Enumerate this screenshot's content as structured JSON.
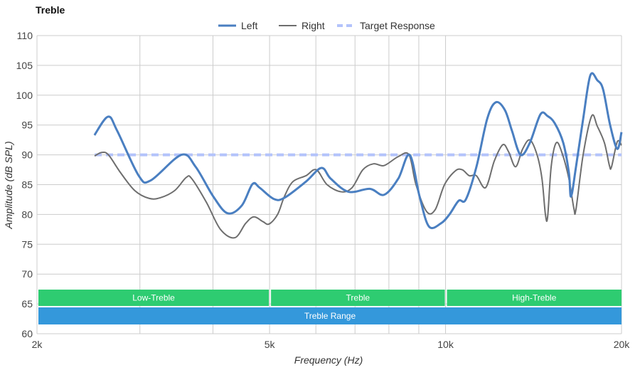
{
  "chart_data": {
    "type": "line",
    "title": "Treble",
    "xlabel": "Frequency (Hz)",
    "ylabel": "Amplitude (dB SPL)",
    "xscale": "log",
    "xlim": [
      2000,
      20000
    ],
    "ylim": [
      60,
      110
    ],
    "grid": true,
    "legend_position": "top",
    "x_ticks": [
      {
        "v": 2000,
        "label": "2k"
      },
      {
        "v": 5000,
        "label": "5k"
      },
      {
        "v": 10000,
        "label": "10k"
      },
      {
        "v": 20000,
        "label": "20k"
      }
    ],
    "x_gridlines": [
      2000,
      3000,
      4000,
      5000,
      6000,
      7000,
      8000,
      9000,
      10000,
      20000
    ],
    "y_ticks": [
      60,
      65,
      70,
      75,
      80,
      85,
      90,
      95,
      100,
      105,
      110
    ],
    "series": [
      {
        "name": "Left",
        "color": "#4a7fc1",
        "style": "solid",
        "x": [
          2508,
          2646,
          2744,
          2986,
          3130,
          3532,
          3736,
          4006,
          4238,
          4482,
          4674,
          4806,
          5084,
          5302,
          5768,
          6132,
          6362,
          6822,
          7420,
          7848,
          8300,
          8682,
          9028,
          9364,
          9818,
          10154,
          10530,
          10830,
          11294,
          11780,
          12184,
          12634,
          12994,
          13438,
          13936,
          14534,
          14948,
          15374,
          15900,
          16256,
          16392,
          16718,
          17194,
          17684,
          18184,
          18596,
          19122,
          19666,
          20000
        ],
        "y": [
          93.3,
          96.4,
          94,
          86.5,
          85.7,
          90,
          88,
          83,
          80.2,
          81.5,
          85.1,
          84.5,
          82.6,
          82.8,
          85.5,
          87.8,
          86,
          83.8,
          84.3,
          83.3,
          86,
          90,
          83,
          78,
          78.5,
          80,
          82.3,
          82.5,
          88,
          96,
          98.8,
          97.5,
          94,
          90,
          92,
          96.8,
          96.5,
          95.3,
          92,
          87,
          83,
          88,
          96,
          103.3,
          102.5,
          101,
          95,
          91,
          93.8
        ]
      },
      {
        "name": "Right",
        "color": "#6e6e6e",
        "style": "solid",
        "x": [
          2510,
          2580,
          2650,
          2780,
          2940,
          3110,
          3250,
          3440,
          3600,
          3680,
          3900,
          4120,
          4360,
          4550,
          4700,
          4870,
          4990,
          5160,
          5300,
          5480,
          5770,
          6010,
          6270,
          6630,
          6920,
          7220,
          7530,
          7850,
          8300,
          8660,
          8900,
          9280,
          9600,
          9960,
          10390,
          10680,
          10980,
          11290,
          11710,
          12120,
          12530,
          12820,
          13180,
          13550,
          13940,
          14340,
          14620,
          14820,
          14950,
          15160,
          15460,
          15800,
          16256,
          16580,
          16718,
          17194,
          17780,
          18180,
          18700,
          19070,
          19230,
          19670,
          20000
        ],
        "y": [
          89.8,
          90.4,
          90,
          87,
          84,
          82.7,
          82.8,
          84,
          86.2,
          86,
          82,
          77.5,
          76.1,
          78.5,
          79.6,
          78.8,
          78.4,
          80,
          83,
          85.5,
          86.5,
          87.5,
          85,
          83.8,
          84.5,
          87.5,
          88.5,
          88.2,
          89.7,
          90,
          85,
          80.5,
          80.8,
          85,
          87.3,
          87.5,
          86.5,
          86.5,
          84.5,
          89,
          91.7,
          90.5,
          88,
          91,
          92.5,
          90,
          86,
          80,
          79.6,
          88,
          92,
          90.5,
          86,
          81,
          80.9,
          90,
          96.5,
          94.8,
          92,
          88.2,
          88,
          92.2,
          91.6
        ]
      },
      {
        "name": "Target Response",
        "color": "#b3c3fb",
        "style": "dashed",
        "x": [
          2510,
          20000
        ],
        "y": [
          90,
          90
        ]
      }
    ],
    "bands": [
      {
        "label": "Low-Treble",
        "from": 2000,
        "to": 5000,
        "row": 1,
        "color": "#2ecc71"
      },
      {
        "label": "Treble",
        "from": 5000,
        "to": 10000,
        "row": 1,
        "color": "#2ecc71"
      },
      {
        "label": "High-Treble",
        "from": 10000,
        "to": 20000,
        "row": 1,
        "color": "#2ecc71"
      },
      {
        "label": "Treble Range",
        "from": 2000,
        "to": 20000,
        "row": 2,
        "color": "#3498db"
      }
    ]
  }
}
